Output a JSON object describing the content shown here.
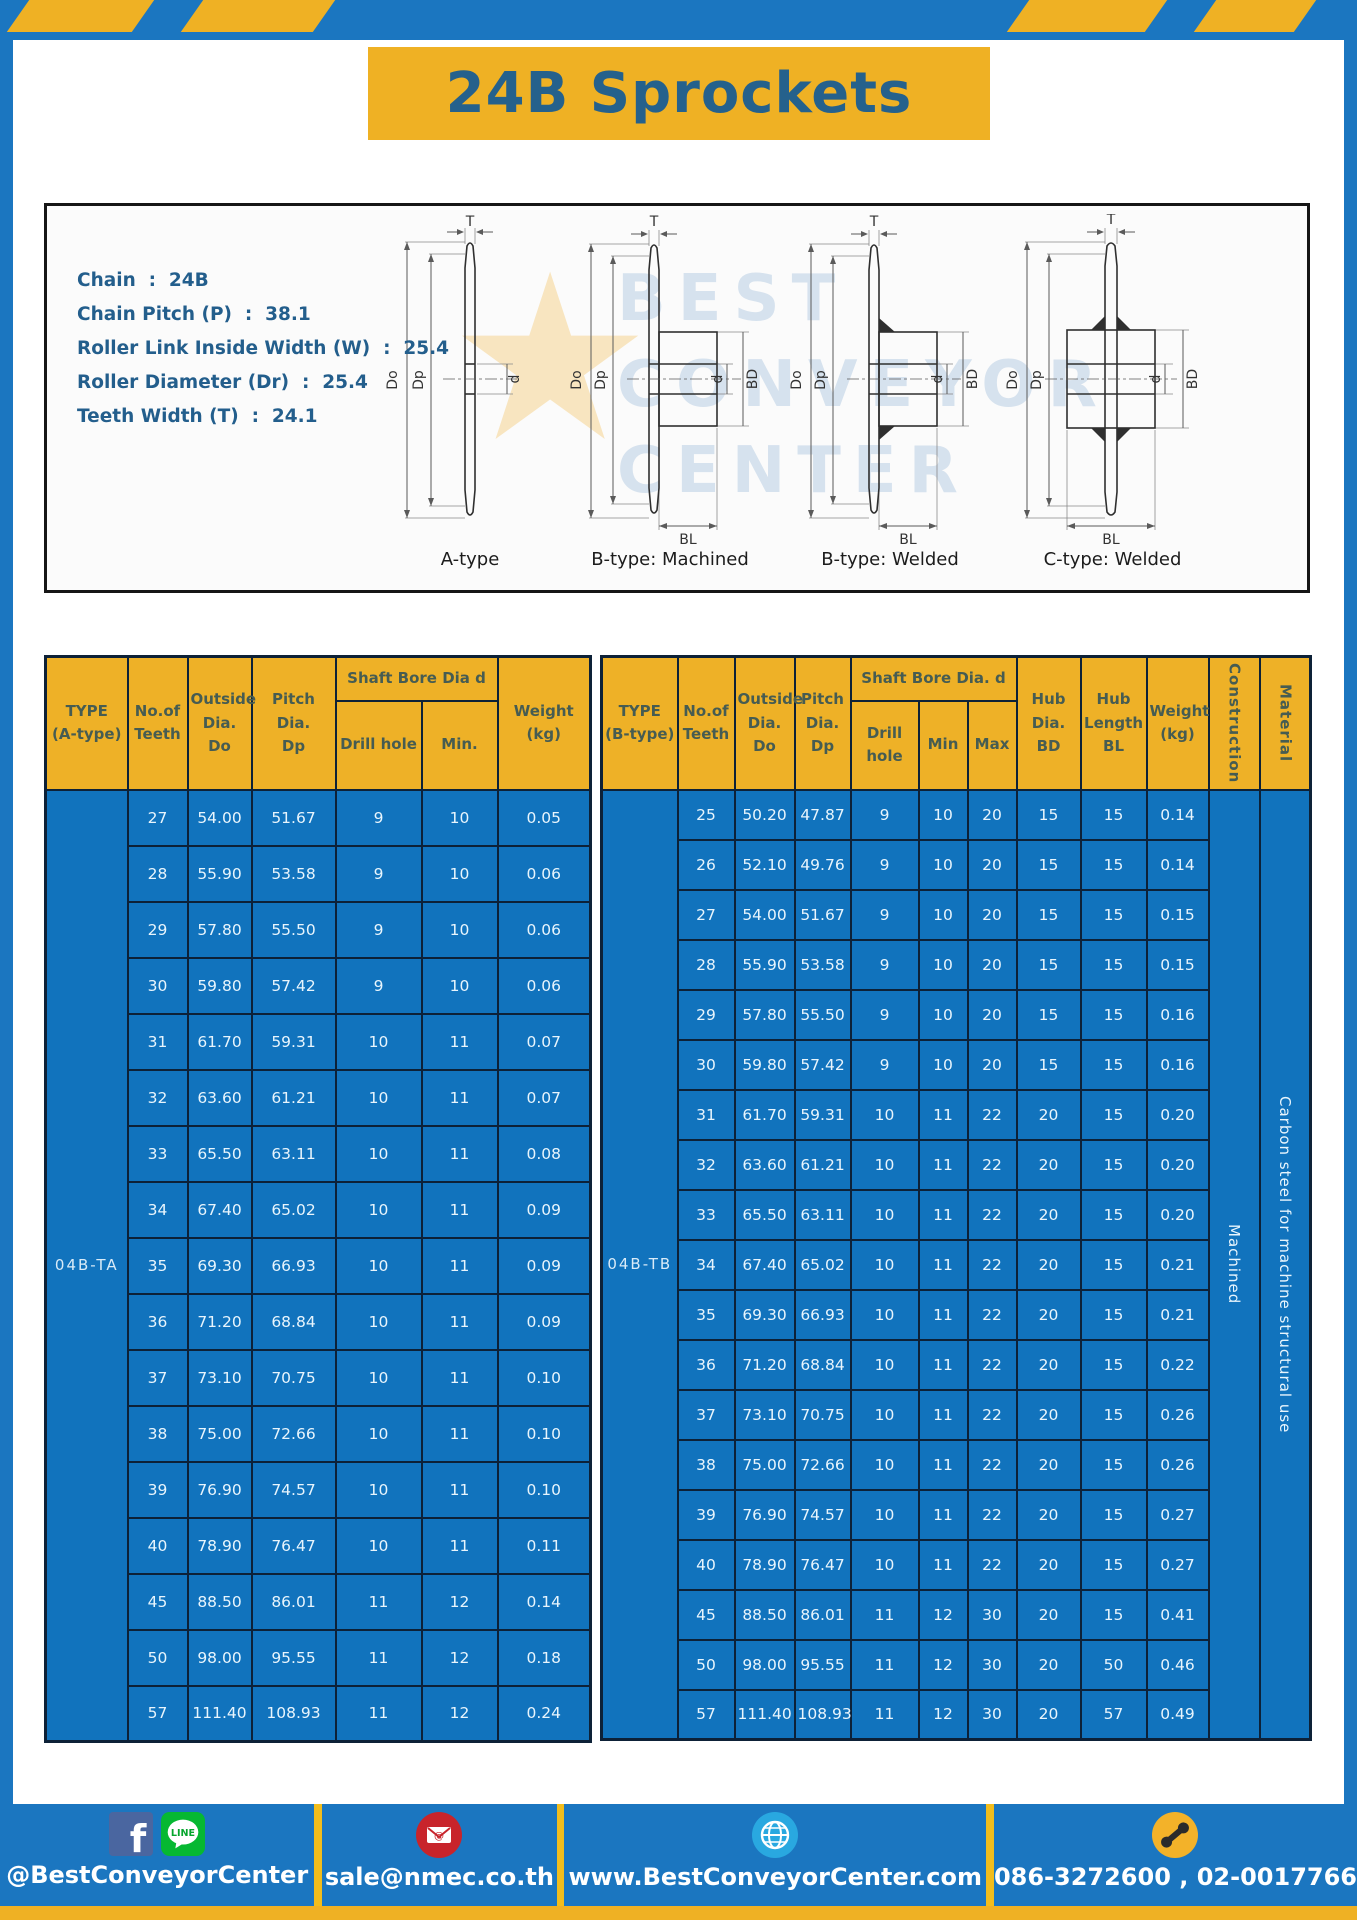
{
  "page": {
    "title": "24B Sprockets"
  },
  "specs": {
    "lines": [
      "Chain  :  24B",
      "Chain Pitch (P)  :  38.1",
      "Roller Link Inside Width (W)  :  25.4",
      "Roller Diameter (Dr)  :  25.4",
      "Teeth Width (T)  :  24.1"
    ]
  },
  "diagram": {
    "captions": [
      "A-type",
      "B-type: Machined",
      "B-type: Welded",
      "C-type: Welded"
    ],
    "labels": {
      "t": "T",
      "dia_o": "Do",
      "dia_p": "Dp",
      "d": "d",
      "bd": "BD",
      "bl": "BL"
    },
    "watermark": {
      "text": "BEST\nCONVEYOR\nCENTER",
      "star": "★"
    }
  },
  "table_a": {
    "headers": {
      "type": "TYPE\n(A-type)",
      "teeth": "No.of\nTeeth",
      "outside": "Outside\nDia.\nDo",
      "pitch": "Pitch Dia.\nDp",
      "bore": "Shaft Bore Dia d",
      "drill": "Drill hole",
      "min": "Min.",
      "weight": "Weight\n(kg)"
    },
    "type_label": "04B-TA",
    "rows": [
      [
        "27",
        "54.00",
        "51.67",
        "9",
        "10",
        "0.05"
      ],
      [
        "28",
        "55.90",
        "53.58",
        "9",
        "10",
        "0.06"
      ],
      [
        "29",
        "57.80",
        "55.50",
        "9",
        "10",
        "0.06"
      ],
      [
        "30",
        "59.80",
        "57.42",
        "9",
        "10",
        "0.06"
      ],
      [
        "31",
        "61.70",
        "59.31",
        "10",
        "11",
        "0.07"
      ],
      [
        "32",
        "63.60",
        "61.21",
        "10",
        "11",
        "0.07"
      ],
      [
        "33",
        "65.50",
        "63.11",
        "10",
        "11",
        "0.08"
      ],
      [
        "34",
        "67.40",
        "65.02",
        "10",
        "11",
        "0.09"
      ],
      [
        "35",
        "69.30",
        "66.93",
        "10",
        "11",
        "0.09"
      ],
      [
        "36",
        "71.20",
        "68.84",
        "10",
        "11",
        "0.09"
      ],
      [
        "37",
        "73.10",
        "70.75",
        "10",
        "11",
        "0.10"
      ],
      [
        "38",
        "75.00",
        "72.66",
        "10",
        "11",
        "0.10"
      ],
      [
        "39",
        "76.90",
        "74.57",
        "10",
        "11",
        "0.10"
      ],
      [
        "40",
        "78.90",
        "76.47",
        "10",
        "11",
        "0.11"
      ],
      [
        "45",
        "88.50",
        "86.01",
        "11",
        "12",
        "0.14"
      ],
      [
        "50",
        "98.00",
        "95.55",
        "11",
        "12",
        "0.18"
      ],
      [
        "57",
        "111.40",
        "108.93",
        "11",
        "12",
        "0.24"
      ]
    ]
  },
  "table_b": {
    "headers": {
      "type": "TYPE\n(B-type)",
      "teeth": "No.of\nTeeth",
      "outside": "Outside\nDia.\nDo",
      "pitch": "Pitch\nDia.\nDp",
      "bore": "Shaft Bore Dia.  d",
      "drill": "Drill hole",
      "min": "Min",
      "max": "Max",
      "hub_dia": "Hub\nDia.\nBD",
      "hub_len": "Hub\nLength\nBL",
      "weight": "Weight\n(kg)",
      "construction": "Construction",
      "material": "Material"
    },
    "type_label": "04B-TB",
    "construction": "Machined",
    "material": "Carbon steel for machine structural use",
    "rows": [
      [
        "25",
        "50.20",
        "47.87",
        "9",
        "10",
        "20",
        "15",
        "15",
        "0.14"
      ],
      [
        "26",
        "52.10",
        "49.76",
        "9",
        "10",
        "20",
        "15",
        "15",
        "0.14"
      ],
      [
        "27",
        "54.00",
        "51.67",
        "9",
        "10",
        "20",
        "15",
        "15",
        "0.15"
      ],
      [
        "28",
        "55.90",
        "53.58",
        "9",
        "10",
        "20",
        "15",
        "15",
        "0.15"
      ],
      [
        "29",
        "57.80",
        "55.50",
        "9",
        "10",
        "20",
        "15",
        "15",
        "0.16"
      ],
      [
        "30",
        "59.80",
        "57.42",
        "9",
        "10",
        "20",
        "15",
        "15",
        "0.16"
      ],
      [
        "31",
        "61.70",
        "59.31",
        "10",
        "11",
        "22",
        "20",
        "15",
        "0.20"
      ],
      [
        "32",
        "63.60",
        "61.21",
        "10",
        "11",
        "22",
        "20",
        "15",
        "0.20"
      ],
      [
        "33",
        "65.50",
        "63.11",
        "10",
        "11",
        "22",
        "20",
        "15",
        "0.20"
      ],
      [
        "34",
        "67.40",
        "65.02",
        "10",
        "11",
        "22",
        "20",
        "15",
        "0.21"
      ],
      [
        "35",
        "69.30",
        "66.93",
        "10",
        "11",
        "22",
        "20",
        "15",
        "0.21"
      ],
      [
        "36",
        "71.20",
        "68.84",
        "10",
        "11",
        "22",
        "20",
        "15",
        "0.22"
      ],
      [
        "37",
        "73.10",
        "70.75",
        "10",
        "11",
        "22",
        "20",
        "15",
        "0.26"
      ],
      [
        "38",
        "75.00",
        "72.66",
        "10",
        "11",
        "22",
        "20",
        "15",
        "0.26"
      ],
      [
        "39",
        "76.90",
        "74.57",
        "10",
        "11",
        "22",
        "20",
        "15",
        "0.27"
      ],
      [
        "40",
        "78.90",
        "76.47",
        "10",
        "11",
        "22",
        "20",
        "15",
        "0.27"
      ],
      [
        "45",
        "88.50",
        "86.01",
        "11",
        "12",
        "30",
        "20",
        "15",
        "0.41"
      ],
      [
        "50",
        "98.00",
        "95.55",
        "11",
        "12",
        "30",
        "20",
        "50",
        "0.46"
      ],
      [
        "57",
        "111.40",
        "108.93",
        "11",
        "12",
        "30",
        "20",
        "57",
        "0.49"
      ]
    ]
  },
  "footer": {
    "line_text": "LINE",
    "facebook_label": "@BestConveyorCenter",
    "email": "sale@nmec.co.th",
    "website": "www.BestConveyorCenter.com",
    "phone": "086-3272600 , 02-0017766"
  },
  "colors": {
    "frame_blue": "#1b76c0",
    "cell_blue": "#1173bd",
    "accent_yellow": "#efb124",
    "header_text": "#465c52",
    "title_blue": "#25618c"
  }
}
